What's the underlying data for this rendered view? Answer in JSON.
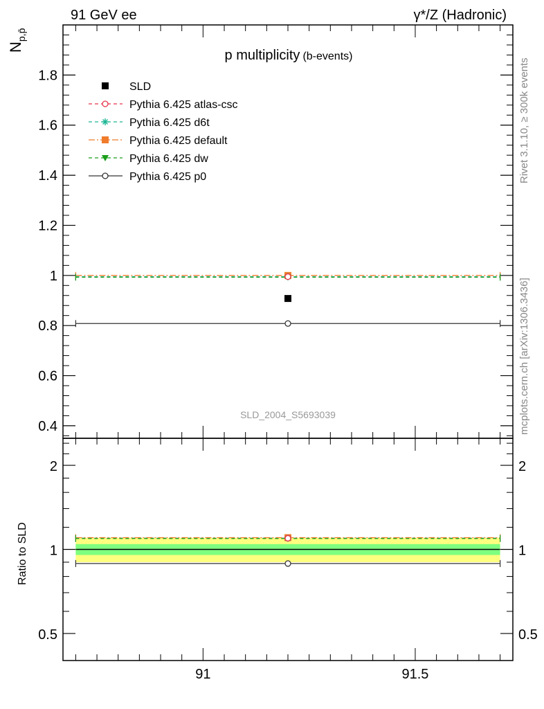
{
  "header": {
    "left": "91 GeV ee",
    "right": "γ*/Z (Hadronic)"
  },
  "side_texts": {
    "rivet": "Rivet 3.1.10, ≥ 300k events",
    "mcplots": "mcplots.cern.ch [arXiv:1306.3436]"
  },
  "watermark": "SLD_2004_S5693039",
  "chart_data": [
    {
      "type": "scatter",
      "title": "p multiplicity",
      "subtitle": "(b-events)",
      "ylabel": "N",
      "ylabel_sub": "p,p̄",
      "xlim": [
        90.67,
        91.73
      ],
      "ylim": [
        0.35,
        2.0
      ],
      "x_ticks": [
        91,
        91.5
      ],
      "y_ticks": [
        0.4,
        0.6,
        0.8,
        1,
        1.2,
        1.4,
        1.6,
        1.8
      ],
      "y_tick_labels": [
        "0.4",
        "0.6",
        "0.8",
        "1",
        "1.2",
        "1.4",
        "1.6",
        "1.8"
      ],
      "x_range": [
        90.7,
        91.7
      ],
      "legend_position": "top-left",
      "series": [
        {
          "name": "SLD",
          "x": 91.2,
          "y": 0.908,
          "color": "#000000",
          "marker": "square",
          "line": "none"
        },
        {
          "name": "Pythia 6.425 atlas-csc",
          "x": 91.2,
          "y": 0.995,
          "color": "#e8334a",
          "marker": "open-circle",
          "line": "dashed"
        },
        {
          "name": "Pythia 6.425 d6t",
          "x": 91.2,
          "y": 0.995,
          "color": "#1ab594",
          "marker": "asterisk",
          "line": "dashed"
        },
        {
          "name": "Pythia 6.425 default",
          "x": 91.2,
          "y": 1.0,
          "color": "#f07c2c",
          "marker": "square",
          "line": "dashdot"
        },
        {
          "name": "Pythia 6.425 dw",
          "x": 91.2,
          "y": 0.993,
          "color": "#1a9e1a",
          "marker": "triangle-down",
          "line": "dashed"
        },
        {
          "name": "Pythia 6.425 p0",
          "x": 91.2,
          "y": 0.808,
          "color": "#333333",
          "marker": "open-circle",
          "line": "solid"
        }
      ]
    },
    {
      "type": "scatter",
      "ylabel": "Ratio to SLD",
      "scale": "log",
      "xlim": [
        90.67,
        91.73
      ],
      "ylim": [
        0.4,
        2.5
      ],
      "x_ticks": [
        91,
        91.5
      ],
      "x_tick_labels": [
        "91",
        "91.5"
      ],
      "y_ticks": [
        0.5,
        1,
        2
      ],
      "y_tick_labels": [
        "0.5",
        "1",
        "2"
      ],
      "band_inner": [
        0.955,
        1.045
      ],
      "band_outer": [
        0.9,
        1.1
      ],
      "band_colors": [
        "#7fff7f",
        "#ffff7f"
      ],
      "series": [
        {
          "name": "Pythia 6.425 atlas-csc",
          "y": 1.096,
          "color": "#e8334a",
          "marker": "open-circle",
          "line": "dashed"
        },
        {
          "name": "Pythia 6.425 d6t",
          "y": 1.096,
          "color": "#1ab594",
          "marker": "asterisk",
          "line": "dashed"
        },
        {
          "name": "Pythia 6.425 default",
          "y": 1.102,
          "color": "#f07c2c",
          "marker": "square",
          "line": "dashdot"
        },
        {
          "name": "Pythia 6.425 dw",
          "y": 1.094,
          "color": "#1a9e1a",
          "marker": "triangle-down",
          "line": "dashed"
        },
        {
          "name": "Pythia 6.425 p0",
          "y": 0.89,
          "color": "#333333",
          "marker": "open-circle",
          "line": "solid"
        }
      ]
    }
  ]
}
